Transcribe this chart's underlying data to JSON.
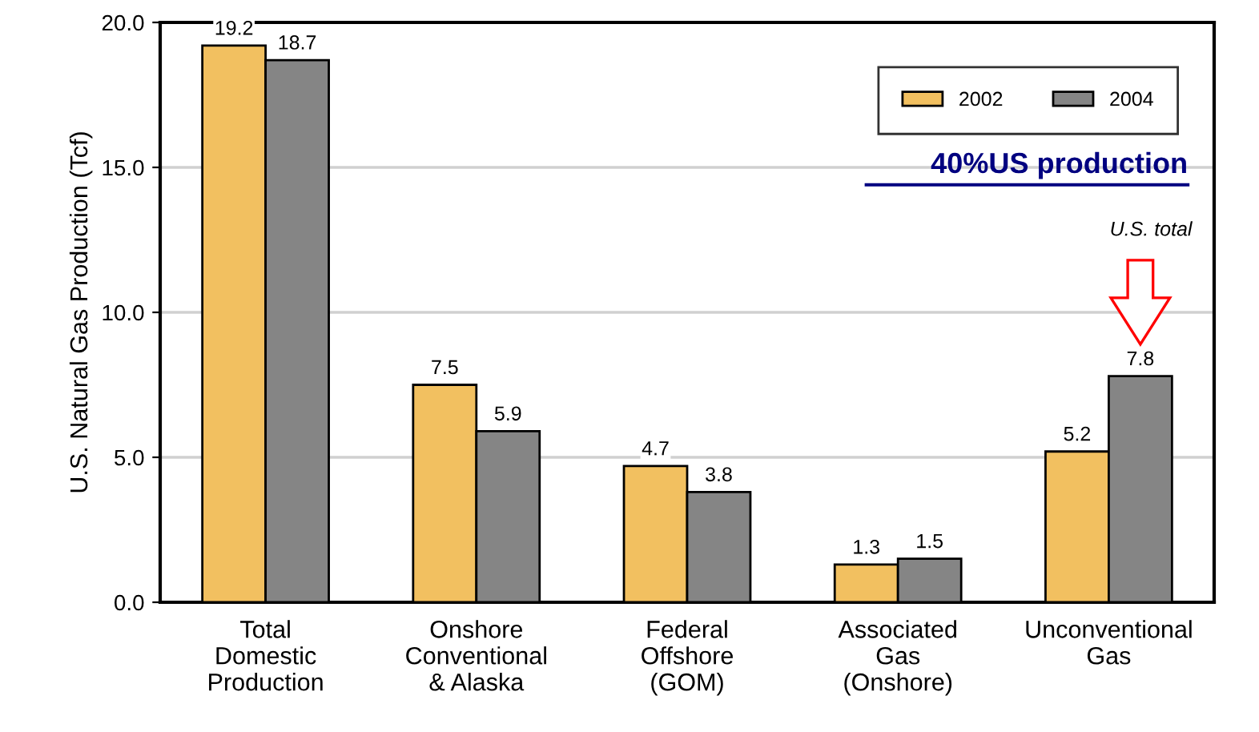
{
  "chart_data": {
    "type": "bar",
    "ylabel": "U.S. Natural Gas Production (Tcf)",
    "categories": [
      "Total\nDomestic\nProduction",
      "Onshore\nConventional\n& Alaska",
      "Federal\nOffshore\n(GOM)",
      "Associated\nGas\n(Onshore)",
      "Unconventional\nGas"
    ],
    "series": [
      {
        "name": "2002",
        "color": "#f2c060",
        "values": [
          19.2,
          7.5,
          4.7,
          1.3,
          5.2
        ]
      },
      {
        "name": "2004",
        "color": "#858585",
        "values": [
          18.7,
          5.9,
          3.8,
          1.5,
          7.8
        ]
      }
    ],
    "ylim": [
      0,
      20
    ],
    "yticks": [
      {
        "value": 0,
        "label": "0.0"
      },
      {
        "value": 5,
        "label": "5.0"
      },
      {
        "value": 10,
        "label": "10.0"
      },
      {
        "value": 15,
        "label": "15.0"
      },
      {
        "value": 20,
        "label": "20.0"
      }
    ],
    "grid": "y",
    "legend": "top right",
    "data_labels": true,
    "annotations": [
      "40%US production",
      "U.S. total"
    ]
  }
}
